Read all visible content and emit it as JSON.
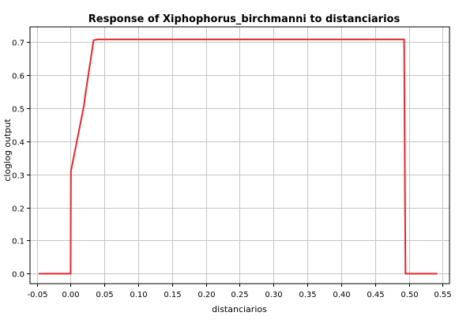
{
  "chart_data": {
    "type": "line",
    "title": "Response of Xiphophorus_birchmanni to distanciarios",
    "xlabel": "distanciarios",
    "ylabel": "cloglog output",
    "xlim": [
      -0.06,
      0.56
    ],
    "ylim": [
      -0.03,
      0.745
    ],
    "grid": true,
    "x_ticks": [
      -0.05,
      0.0,
      0.05,
      0.1,
      0.15,
      0.2,
      0.25,
      0.3,
      0.35,
      0.4,
      0.45,
      0.5,
      0.55
    ],
    "x_tick_labels": [
      "-0.05",
      "0.00",
      "0.05",
      "0.10",
      "0.15",
      "0.20",
      "0.25",
      "0.30",
      "0.35",
      "0.40",
      "0.45",
      "0.50",
      "0.55"
    ],
    "y_ticks": [
      0.0,
      0.1,
      0.2,
      0.3,
      0.4,
      0.5,
      0.6,
      0.7
    ],
    "y_tick_labels": [
      "0.0",
      "0.1",
      "0.2",
      "0.3",
      "0.4",
      "0.5",
      "0.6",
      "0.7"
    ],
    "series": [
      {
        "color": "#e8262b",
        "x": [
          -0.047,
          0.0,
          0.0005,
          0.002,
          0.02,
          0.021,
          0.034,
          0.04,
          0.45,
          0.493,
          0.494,
          0.495,
          0.542
        ],
        "y": [
          0.0,
          0.0,
          0.31,
          0.325,
          0.51,
          0.53,
          0.705,
          0.707,
          0.707,
          0.707,
          0.3,
          0.0,
          0.0
        ]
      }
    ]
  }
}
